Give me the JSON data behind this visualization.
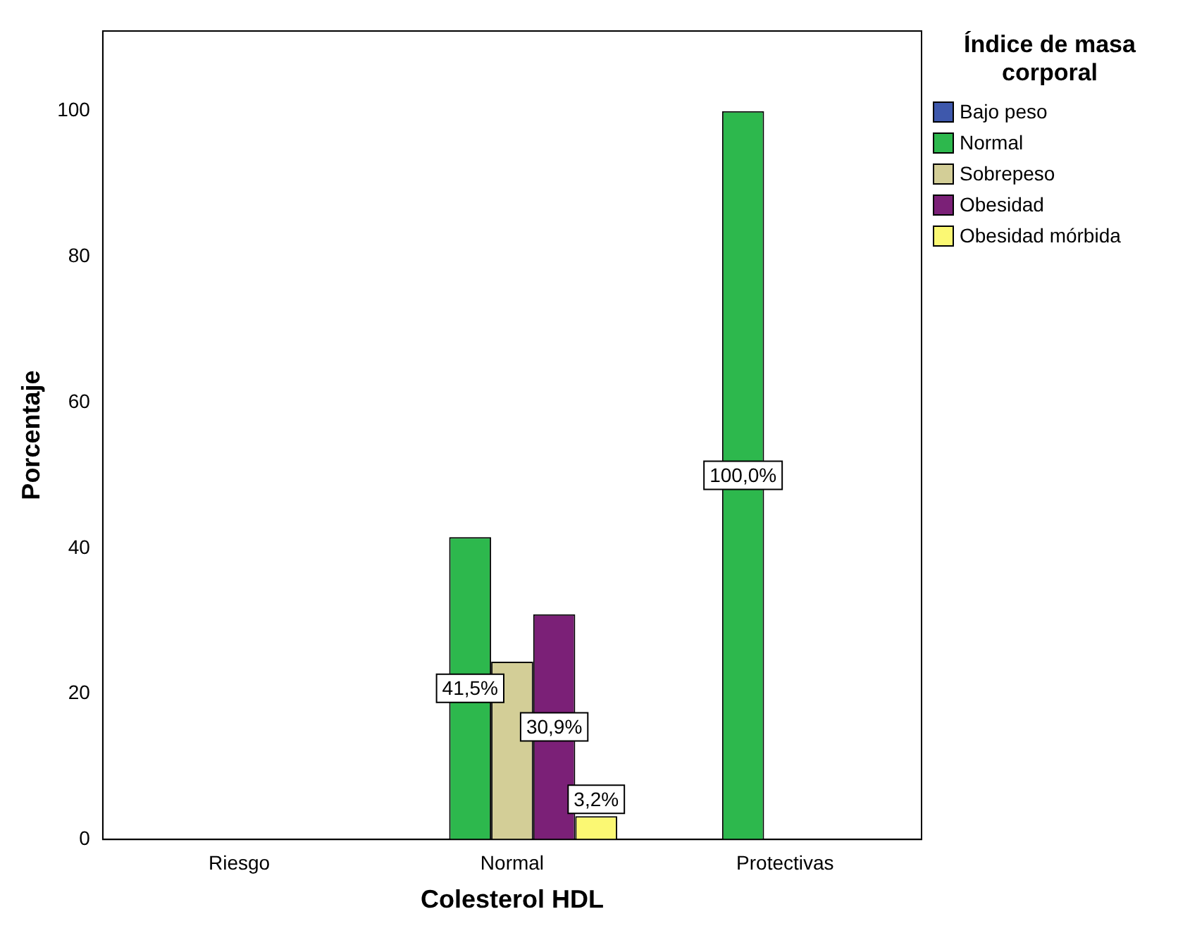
{
  "chart_data": {
    "type": "bar",
    "xlabel": "Colesterol HDL",
    "ylabel": "Porcentaje",
    "legend_title": "Índice de masa corporal",
    "categories": [
      "Riesgo",
      "Normal",
      "Protectivas"
    ],
    "series": [
      {
        "name": "Bajo peso",
        "color": "#3e58ac",
        "values": [
          null,
          null,
          null
        ],
        "value_labels": [
          null,
          null,
          null
        ]
      },
      {
        "name": "Normal",
        "color": "#2db84d",
        "values": [
          null,
          41.5,
          100.0
        ],
        "value_labels": [
          null,
          "41,5%",
          "100,0%"
        ]
      },
      {
        "name": "Sobrepeso",
        "color": "#d3ce97",
        "values": [
          null,
          24.4,
          null
        ],
        "value_labels": [
          null,
          null,
          null
        ]
      },
      {
        "name": "Obesidad",
        "color": "#7b2077",
        "values": [
          null,
          30.9,
          null
        ],
        "value_labels": [
          null,
          "30,9%",
          null
        ]
      },
      {
        "name": "Obesidad mórbida",
        "color": "#fbf873",
        "values": [
          null,
          3.2,
          null
        ],
        "value_labels": [
          null,
          "3,2%",
          null
        ]
      }
    ],
    "ylim": [
      0,
      111
    ],
    "yticks": [
      0,
      20,
      40,
      60,
      80,
      100
    ],
    "grid": false,
    "legend": "top right"
  }
}
